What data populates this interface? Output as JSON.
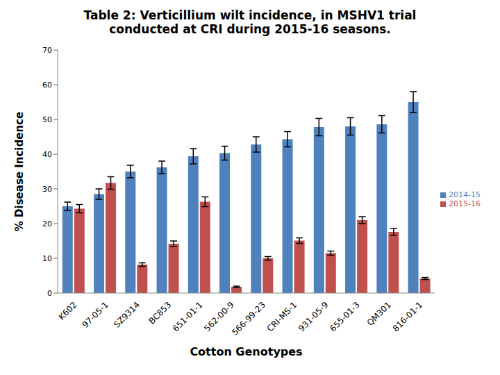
{
  "chart_data": {
    "type": "bar",
    "title": "Table 2:  Verticillium wilt incidence, in MSHV1 trial conducted at CRI during 2015-16 seasons.",
    "x_label": "Cotton Genotypes",
    "y_label": "% Disease Incidence",
    "categories": [
      "K602",
      "97-05-1",
      "SZ9314",
      "BC853",
      "651-01-1",
      "562-00-9",
      "566-99-23",
      "CRI-MS-1",
      "931-05-9",
      "655-01-3",
      "QM301",
      "816-01-1"
    ],
    "series": [
      {
        "name": "2014-15",
        "color": "#4f81bd",
        "values": [
          25,
          28.5,
          35,
          36.2,
          39.4,
          40.3,
          42.8,
          44.3,
          47.8,
          48,
          48.6,
          55
        ],
        "errors": [
          1.2,
          1.5,
          1.8,
          1.8,
          2.2,
          2,
          2.2,
          2.2,
          2.5,
          2.5,
          2.5,
          3
        ]
      },
      {
        "name": "2015-16",
        "color": "#c0504d",
        "values": [
          24.3,
          31.7,
          8.2,
          14.2,
          26.3,
          1.8,
          10,
          15.1,
          11.5,
          21,
          17.6,
          4.2
        ],
        "errors": [
          1.2,
          1.8,
          0.5,
          0.8,
          1.4,
          0.2,
          0.5,
          0.8,
          0.6,
          1,
          1,
          0.3
        ]
      }
    ],
    "ylim": [
      0,
      70
    ],
    "yticks": [
      0,
      10,
      20,
      30,
      40,
      50,
      60,
      70
    ],
    "grid": false,
    "legend": "right"
  }
}
